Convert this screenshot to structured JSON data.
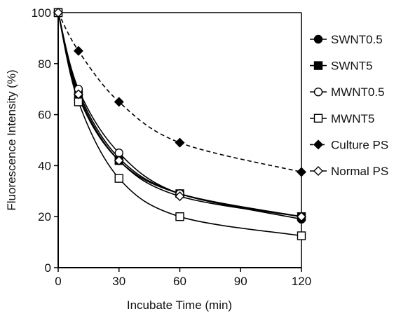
{
  "chart_data": {
    "type": "line",
    "title": "",
    "xlabel": "Incubate Time (min)",
    "ylabel": "Fluorescence Intensity (%)",
    "xlim": [
      0,
      120
    ],
    "ylim": [
      0,
      100
    ],
    "xticks": [
      0,
      30,
      60,
      90,
      120
    ],
    "yticks": [
      0,
      20,
      40,
      60,
      80,
      100
    ],
    "x": [
      0,
      10,
      30,
      60,
      120
    ],
    "grid": false,
    "legend_position": "right",
    "series": [
      {
        "name": "SWNT0.5",
        "values": [
          100,
          69,
          43,
          29,
          19
        ],
        "marker": "circle",
        "filled": true,
        "dashed": false,
        "color": "#000000"
      },
      {
        "name": "SWNT5",
        "values": [
          100,
          67,
          42,
          29,
          20
        ],
        "marker": "square",
        "filled": true,
        "dashed": false,
        "color": "#000000"
      },
      {
        "name": "MWNT0.5",
        "values": [
          100,
          70,
          45,
          29,
          20
        ],
        "marker": "circle",
        "filled": false,
        "dashed": false,
        "color": "#000000"
      },
      {
        "name": "MWNT5",
        "values": [
          100,
          65,
          35,
          20,
          12.5
        ],
        "marker": "square",
        "filled": false,
        "dashed": false,
        "color": "#000000"
      },
      {
        "name": "Culture PS",
        "values": [
          100,
          85,
          65,
          49,
          37.5
        ],
        "marker": "diamond",
        "filled": true,
        "dashed": true,
        "color": "#000000"
      },
      {
        "name": "Normal PS",
        "values": [
          100,
          68,
          42,
          28,
          20
        ],
        "marker": "diamond",
        "filled": false,
        "dashed": false,
        "color": "#000000"
      }
    ]
  }
}
